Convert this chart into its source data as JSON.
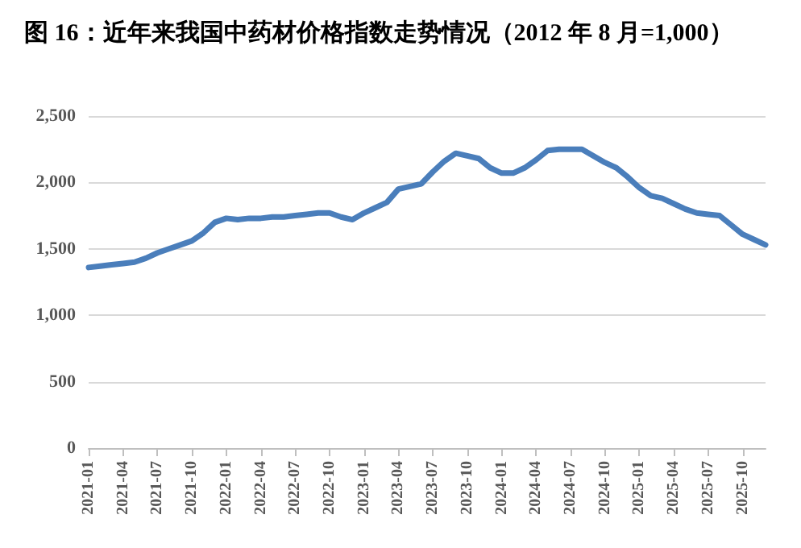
{
  "chart_data": {
    "type": "line",
    "title": "图 16：近年来我国中药材价格指数走势情况（2012 年 8 月=1,000）",
    "categories": [
      "2021-01",
      null,
      null,
      "2021-04",
      null,
      null,
      "2021-07",
      null,
      null,
      "2021-10",
      null,
      null,
      "2022-01",
      null,
      null,
      "2022-04",
      null,
      null,
      "2022-07",
      null,
      null,
      "2022-10",
      null,
      null,
      "2023-01",
      null,
      null,
      "2023-04",
      null,
      null,
      "2023-07",
      null,
      null,
      "2023-10",
      null,
      null,
      "2024-01",
      null,
      null,
      "2024-04",
      null,
      null,
      "2024-07",
      null,
      null,
      "2024-10",
      null,
      null,
      "2025-01",
      null,
      null,
      "2025-04",
      null,
      null,
      "2025-07",
      null,
      null,
      "2025-10",
      null,
      null
    ],
    "series": [
      {
        "color": "#4a7ebb",
        "values": [
          1360,
          1370,
          1380,
          1390,
          1400,
          1430,
          1470,
          1500,
          1530,
          1560,
          1620,
          1700,
          1730,
          1720,
          1730,
          1730,
          1740,
          1740,
          1750,
          1760,
          1770,
          1770,
          1740,
          1720,
          1770,
          1810,
          1850,
          1950,
          1970,
          1990,
          2080,
          2160,
          2220,
          2200,
          2180,
          2110,
          2070,
          2070,
          2110,
          2170,
          2240,
          2250,
          2250,
          2250,
          2200,
          2150,
          2110,
          2040,
          1960,
          1900,
          1880,
          1840,
          1800,
          1770,
          1760,
          1750,
          1680,
          1610,
          1570,
          1530
        ]
      }
    ],
    "ylim": [
      0,
      2500
    ],
    "yticks": [
      0,
      500,
      {
        "value": 1000,
        "label": "1,000"
      },
      {
        "value": 1500,
        "label": "1,500"
      },
      {
        "value": 2000,
        "label": "2,000"
      },
      {
        "value": 2500,
        "label": "2,500"
      }
    ],
    "grid": "y",
    "marker": "none",
    "line_style": "solid"
  }
}
